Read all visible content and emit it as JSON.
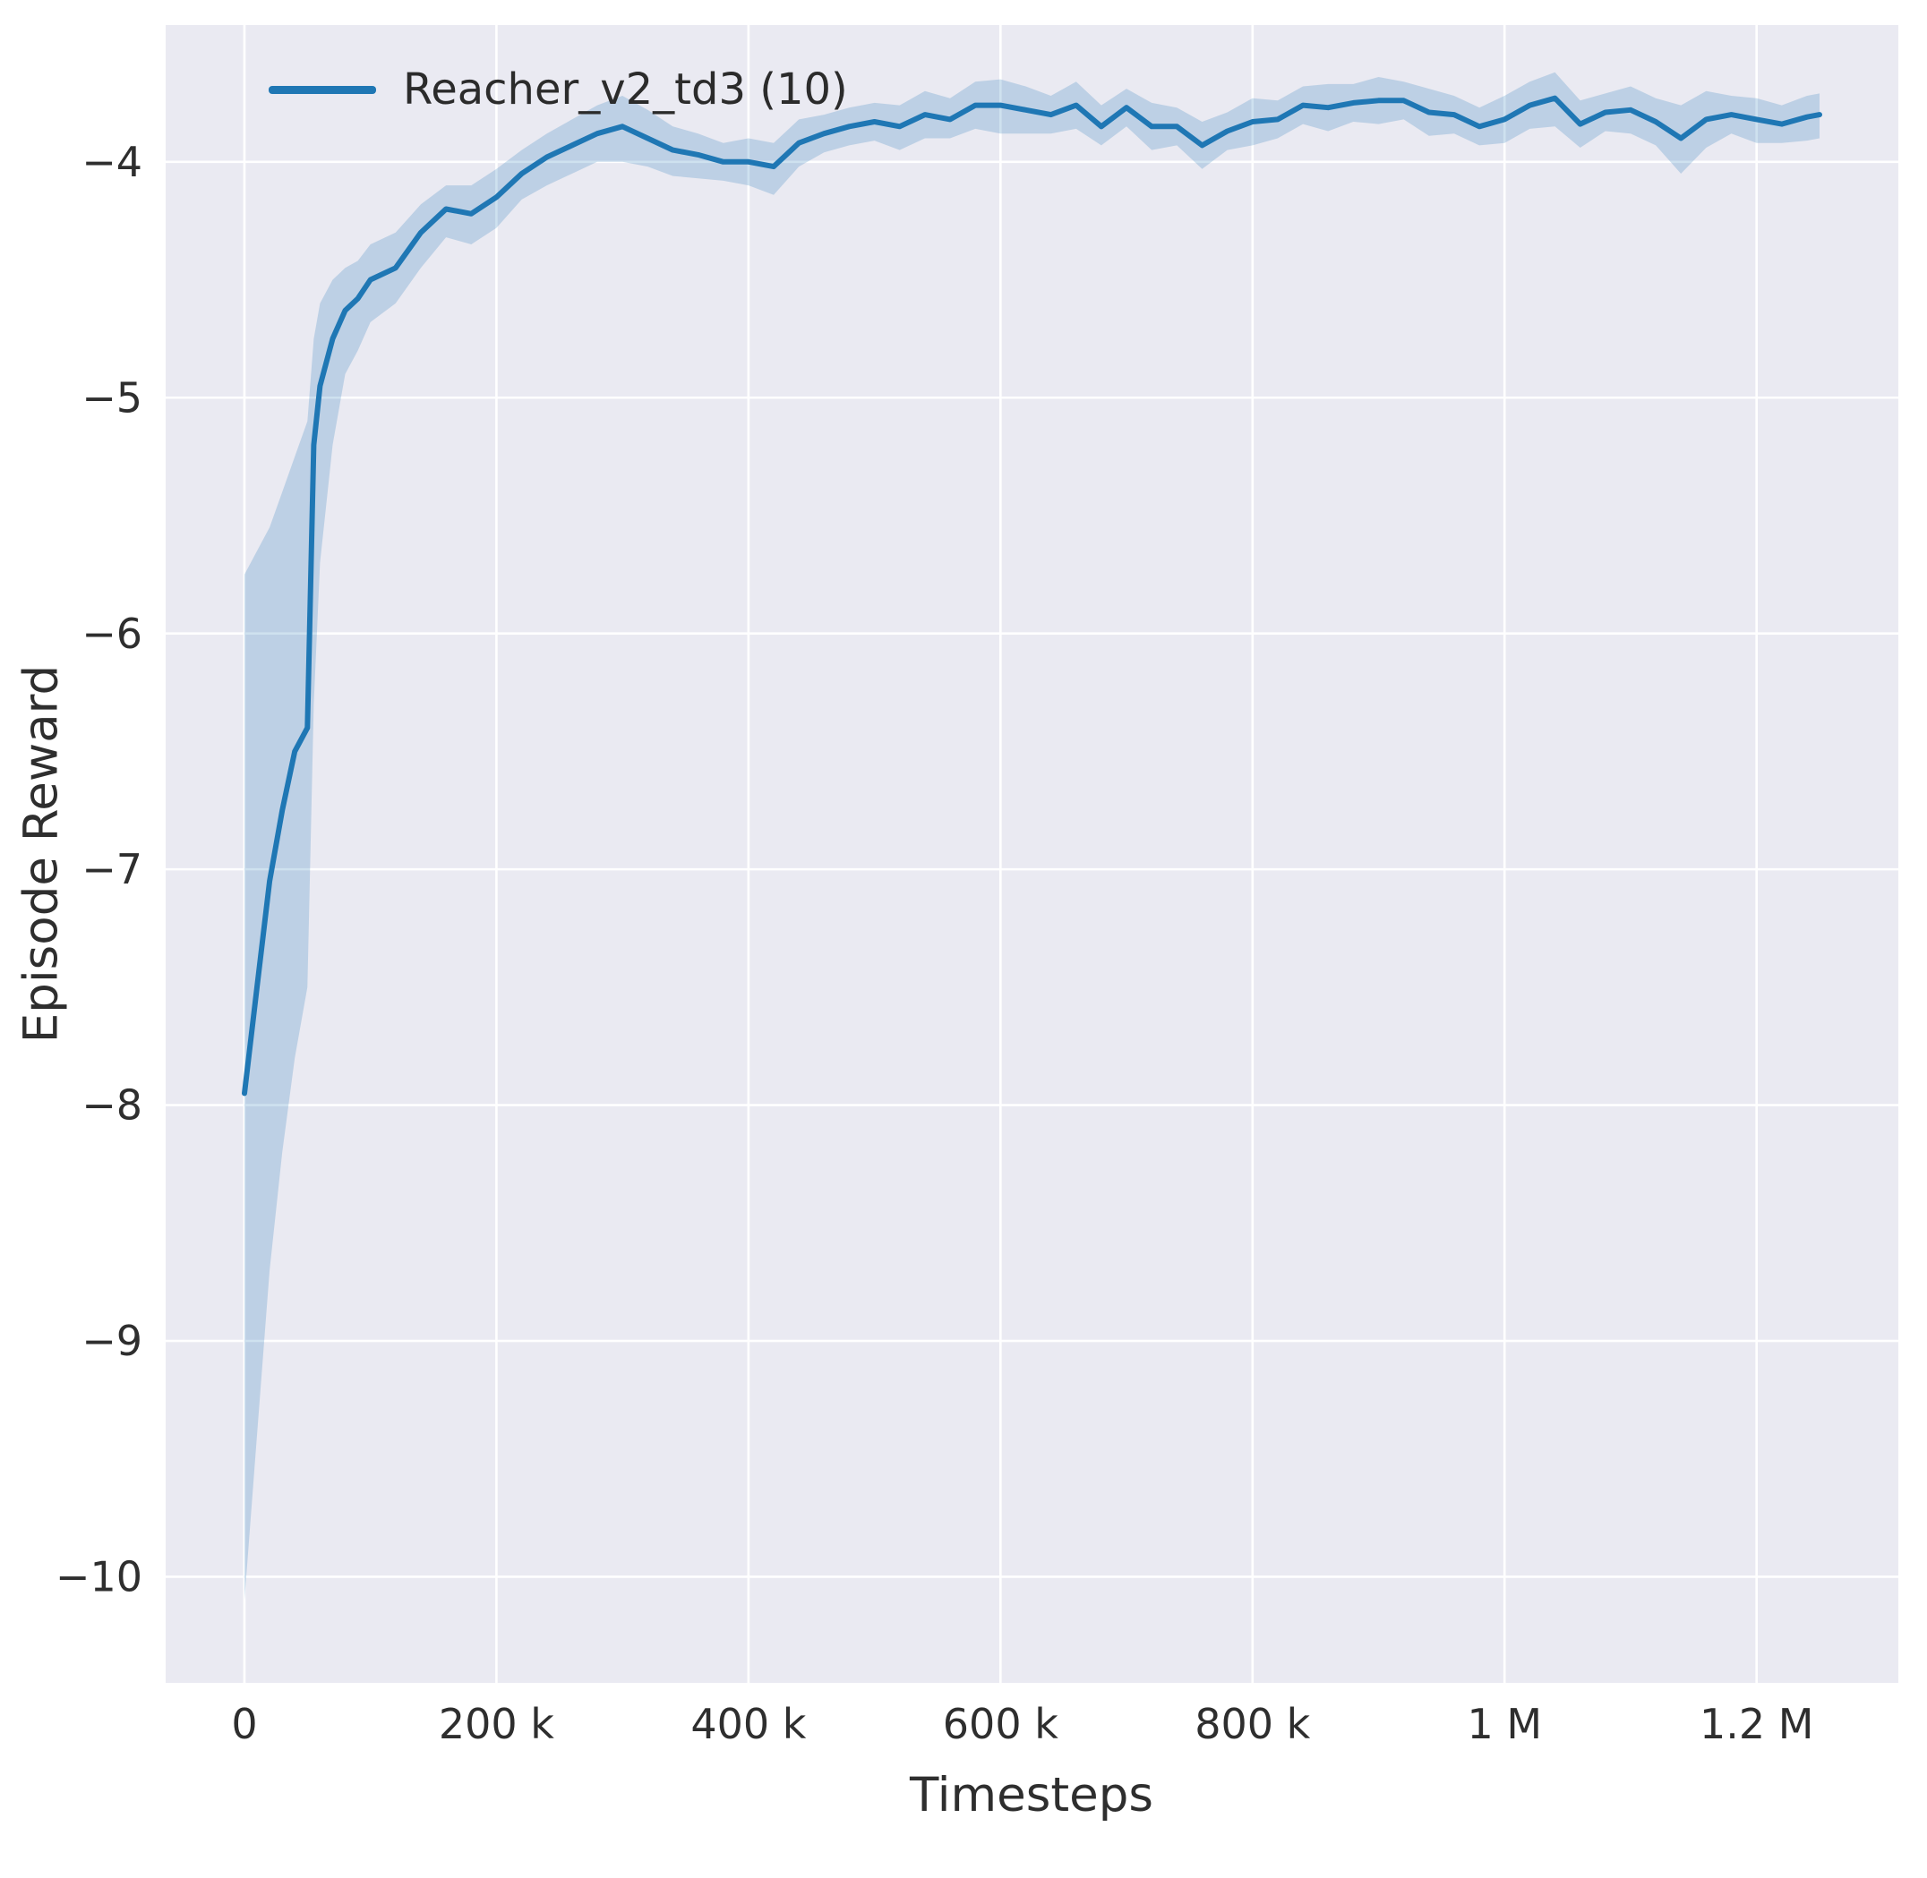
{
  "chart_data": {
    "type": "line",
    "title": "",
    "xlabel": "Timesteps",
    "ylabel": "Episode Reward",
    "legend": [
      {
        "label": "Reacher_v2_td3 (10)",
        "color": "#1f77b4"
      }
    ],
    "grid": true,
    "legend_position": "upper left",
    "plot_bg": "#eaeaf2",
    "grid_color": "#ffffff",
    "line_color": "#1f77b4",
    "band_color": "rgba(31,119,180,0.22)",
    "tick_color": "#2e2e2e",
    "xlim": [
      -62500,
      1312500
    ],
    "ylim": [
      -10.45,
      -3.42
    ],
    "xticks": {
      "values": [
        0,
        200000,
        400000,
        600000,
        800000,
        1000000,
        1200000
      ],
      "labels": [
        "0",
        "200 k",
        "400 k",
        "600 k",
        "800 k",
        "1 M",
        "1.2 M"
      ]
    },
    "yticks": {
      "values": [
        -4,
        -5,
        -6,
        -7,
        -8,
        -9,
        -10
      ],
      "labels": [
        "−4",
        "−5",
        "−6",
        "−7",
        "−8",
        "−9",
        "−10"
      ]
    },
    "series": [
      {
        "name": "Reacher_v2_td3 (10)",
        "x": [
          0,
          10000,
          20000,
          30000,
          40000,
          50000,
          55000,
          60000,
          70000,
          80000,
          90000,
          100000,
          120000,
          140000,
          160000,
          180000,
          200000,
          220000,
          240000,
          260000,
          280000,
          300000,
          320000,
          340000,
          360000,
          380000,
          400000,
          420000,
          440000,
          460000,
          480000,
          500000,
          520000,
          540000,
          560000,
          580000,
          600000,
          620000,
          640000,
          660000,
          680000,
          700000,
          720000,
          740000,
          760000,
          780000,
          800000,
          820000,
          840000,
          860000,
          880000,
          900000,
          920000,
          940000,
          960000,
          980000,
          1000000,
          1020000,
          1040000,
          1060000,
          1080000,
          1100000,
          1120000,
          1140000,
          1160000,
          1180000,
          1200000,
          1220000,
          1240000,
          1250000
        ],
        "mean": [
          -7.95,
          -7.5,
          -7.05,
          -6.75,
          -6.5,
          -6.4,
          -5.2,
          -4.95,
          -4.75,
          -4.63,
          -4.58,
          -4.5,
          -4.45,
          -4.3,
          -4.2,
          -4.22,
          -4.15,
          -4.05,
          -3.98,
          -3.93,
          -3.88,
          -3.85,
          -3.9,
          -3.95,
          -3.97,
          -4.0,
          -4.0,
          -4.02,
          -3.92,
          -3.88,
          -3.85,
          -3.83,
          -3.85,
          -3.8,
          -3.82,
          -3.76,
          -3.76,
          -3.78,
          -3.8,
          -3.76,
          -3.85,
          -3.77,
          -3.85,
          -3.85,
          -3.93,
          -3.87,
          -3.83,
          -3.82,
          -3.76,
          -3.77,
          -3.75,
          -3.74,
          -3.74,
          -3.79,
          -3.8,
          -3.85,
          -3.82,
          -3.76,
          -3.73,
          -3.84,
          -3.79,
          -3.78,
          -3.83,
          -3.9,
          -3.82,
          -3.8,
          -3.82,
          -3.84,
          -3.81,
          -3.8
        ],
        "lower": [
          -10.1,
          -9.4,
          -8.7,
          -8.2,
          -7.8,
          -7.5,
          -6.3,
          -5.7,
          -5.2,
          -4.9,
          -4.8,
          -4.68,
          -4.6,
          -4.45,
          -4.32,
          -4.35,
          -4.28,
          -4.16,
          -4.1,
          -4.05,
          -4.0,
          -4.0,
          -4.02,
          -4.06,
          -4.07,
          -4.08,
          -4.1,
          -4.14,
          -4.02,
          -3.96,
          -3.93,
          -3.91,
          -3.95,
          -3.9,
          -3.9,
          -3.86,
          -3.88,
          -3.88,
          -3.88,
          -3.86,
          -3.93,
          -3.85,
          -3.95,
          -3.93,
          -4.03,
          -3.95,
          -3.93,
          -3.9,
          -3.84,
          -3.87,
          -3.83,
          -3.84,
          -3.82,
          -3.89,
          -3.88,
          -3.93,
          -3.92,
          -3.86,
          -3.85,
          -3.94,
          -3.87,
          -3.88,
          -3.93,
          -4.05,
          -3.94,
          -3.88,
          -3.92,
          -3.92,
          -3.91,
          -3.9
        ],
        "upper": [
          -5.75,
          -5.65,
          -5.55,
          -5.4,
          -5.25,
          -5.1,
          -4.75,
          -4.6,
          -4.5,
          -4.45,
          -4.42,
          -4.35,
          -4.3,
          -4.18,
          -4.1,
          -4.1,
          -4.03,
          -3.95,
          -3.88,
          -3.82,
          -3.76,
          -3.72,
          -3.78,
          -3.85,
          -3.88,
          -3.92,
          -3.9,
          -3.92,
          -3.82,
          -3.8,
          -3.77,
          -3.75,
          -3.76,
          -3.7,
          -3.73,
          -3.66,
          -3.65,
          -3.68,
          -3.72,
          -3.66,
          -3.76,
          -3.69,
          -3.75,
          -3.77,
          -3.83,
          -3.79,
          -3.73,
          -3.74,
          -3.68,
          -3.67,
          -3.67,
          -3.64,
          -3.66,
          -3.69,
          -3.72,
          -3.77,
          -3.72,
          -3.66,
          -3.62,
          -3.74,
          -3.71,
          -3.68,
          -3.73,
          -3.76,
          -3.7,
          -3.72,
          -3.73,
          -3.76,
          -3.72,
          -3.71
        ]
      }
    ]
  }
}
